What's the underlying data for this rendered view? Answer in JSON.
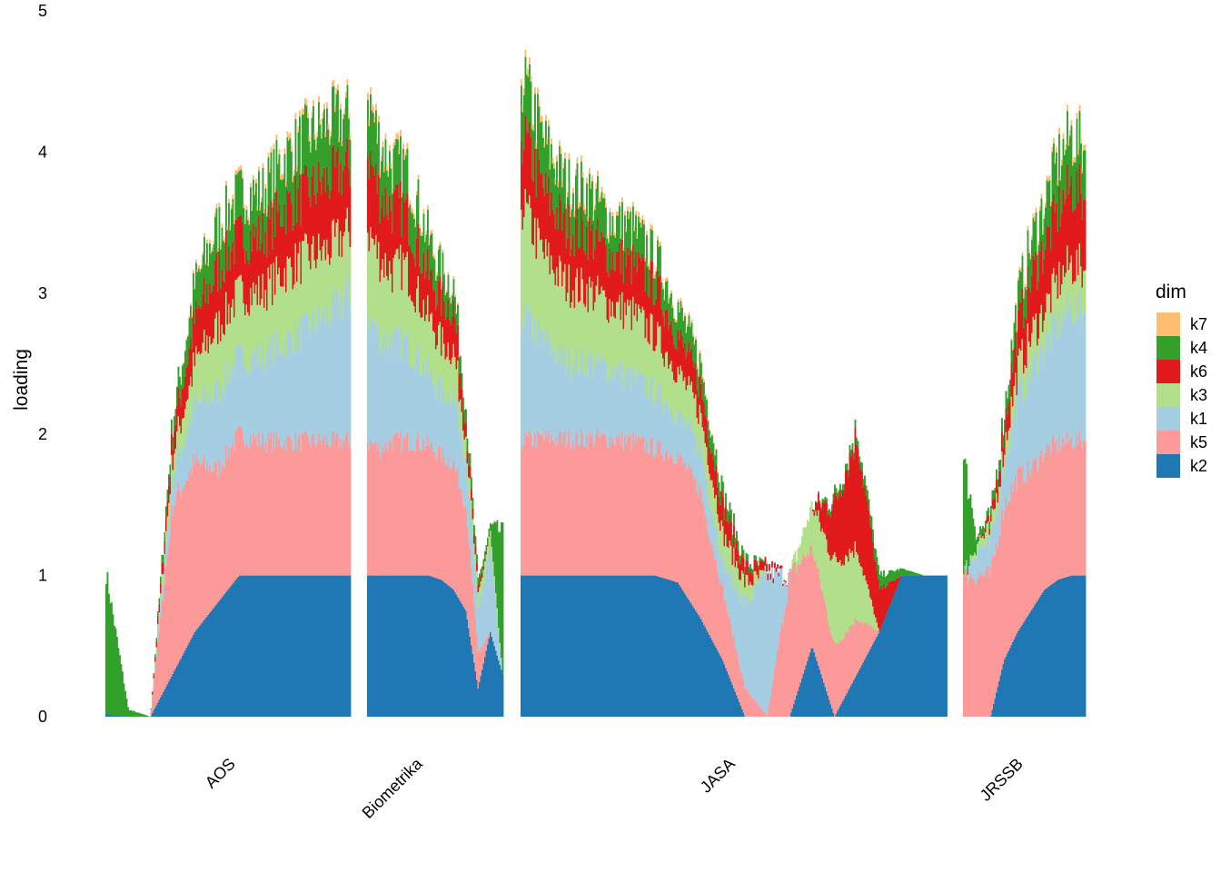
{
  "chart_data": {
    "type": "bar",
    "stacked": true,
    "xlabel": "",
    "ylabel": "loading",
    "ylim": [
      0,
      5
    ],
    "y_ticks": [
      "0",
      "1",
      "2",
      "3",
      "4",
      "5"
    ],
    "grid": false,
    "legend": {
      "title": "dim",
      "position": "right",
      "order": [
        "k7",
        "k4",
        "k6",
        "k3",
        "k1",
        "k5",
        "k2"
      ]
    },
    "colors": {
      "k2": "#1F78B4",
      "k5": "#FB9A99",
      "k1": "#A6CEE3",
      "k3": "#B2DF8A",
      "k6": "#E31A1C",
      "k4": "#33A02C",
      "k7": "#FDBF6F"
    },
    "stack_order": [
      "k2",
      "k5",
      "k1",
      "k3",
      "k6",
      "k4",
      "k7"
    ],
    "categories": [
      "AOS",
      "Biometrika",
      "JASA",
      "JRSSB"
    ],
    "approximate_series": [
      {
        "name": "k2",
        "profile": {
          "AOS": [
            0.02,
            0.0,
            0.0,
            0.3,
            0.6,
            0.8,
            1.0,
            1.0,
            1.0,
            1.0,
            1.0,
            1.0
          ],
          "Biometrika": [
            1.0,
            1.0,
            1.0,
            1.0,
            1.0,
            1.0,
            0.97,
            0.9,
            0.75,
            0.2,
            0.6,
            0.3
          ],
          "JASA": [
            1.0,
            1.0,
            1.0,
            1.0,
            1.0,
            1.0,
            1.0,
            0.95,
            0.7,
            0.4,
            0.0,
            0.0,
            0.0,
            0.5,
            0.0,
            0.3,
            0.6,
            1.0,
            1.0,
            1.0
          ],
          "JRSSB": [
            0.0,
            0.0,
            0.0,
            0.4,
            0.6,
            0.75,
            0.9,
            0.97,
            1.0,
            1.0
          ]
        }
      },
      {
        "name": "k5",
        "profile": {
          "AOS": [
            0.0,
            0.0,
            0.0,
            1.2,
            1.2,
            0.95,
            1.0,
            0.95,
            0.95,
            0.95,
            0.95,
            0.95
          ],
          "Biometrika": [
            0.95,
            0.9,
            0.95,
            0.95,
            0.95,
            0.92,
            0.88,
            0.9,
            0.75,
            0.25,
            0.0,
            0.0
          ],
          "JASA": [
            0.95,
            0.97,
            0.97,
            0.97,
            0.97,
            0.95,
            0.9,
            0.9,
            0.9,
            0.5,
            0.2,
            0.0,
            1.0,
            0.7,
            0.5,
            0.4,
            0.0,
            0.0,
            0.0,
            0.0
          ],
          "JRSSB": [
            1.0,
            1.0,
            1.0,
            1.1,
            1.1,
            1.0,
            0.98,
            0.96,
            0.96,
            0.96
          ]
        }
      },
      {
        "name": "k1",
        "profile": {
          "AOS": [
            0.0,
            0.0,
            0.0,
            0.2,
            0.4,
            0.55,
            0.55,
            0.6,
            0.7,
            0.8,
            0.9,
            1.05
          ],
          "Biometrika": [
            0.9,
            0.8,
            0.7,
            0.7,
            0.6,
            0.5,
            0.45,
            0.5,
            0.35,
            0.3,
            0.6,
            0.0
          ],
          "JASA": [
            0.9,
            0.7,
            0.55,
            0.55,
            0.5,
            0.45,
            0.4,
            0.3,
            0.3,
            0.2,
            0.6,
            1.0,
            0.0,
            0.0,
            0.0,
            0.0,
            0.0,
            0.0,
            0.0,
            0.0
          ],
          "JRSSB": [
            0.0,
            0.2,
            0.2,
            0.3,
            0.55,
            0.7,
            0.75,
            0.85,
            0.95,
            0.9
          ]
        }
      },
      {
        "name": "k3",
        "profile": {
          "AOS": [
            0.0,
            0.0,
            0.0,
            0.15,
            0.3,
            0.45,
            0.45,
            0.45,
            0.5,
            0.5,
            0.45,
            0.45
          ],
          "Biometrika": [
            0.6,
            0.55,
            0.5,
            0.55,
            0.45,
            0.4,
            0.35,
            0.3,
            0.15,
            0.1,
            0.1,
            0.0
          ],
          "JASA": [
            0.8,
            0.6,
            0.55,
            0.5,
            0.45,
            0.45,
            0.4,
            0.3,
            0.25,
            0.2,
            0.15,
            0.0,
            0.0,
            0.3,
            0.6,
            0.5,
            0.0,
            0.0,
            0.0,
            0.0
          ],
          "JRSSB": [
            0.0,
            0.05,
            0.1,
            0.1,
            0.2,
            0.25,
            0.25,
            0.3,
            0.3,
            0.3
          ]
        }
      },
      {
        "name": "k6",
        "profile": {
          "AOS": [
            0.0,
            0.0,
            0.0,
            0.15,
            0.3,
            0.4,
            0.4,
            0.4,
            0.45,
            0.45,
            0.5,
            0.45
          ],
          "Biometrika": [
            0.55,
            0.45,
            0.45,
            0.4,
            0.35,
            0.3,
            0.3,
            0.3,
            0.1,
            0.05,
            0.0,
            0.0
          ],
          "JASA": [
            0.5,
            0.45,
            0.4,
            0.4,
            0.35,
            0.35,
            0.35,
            0.25,
            0.2,
            0.2,
            0.1,
            0.05,
            0.0,
            0.0,
            0.4,
            0.8,
            0.3,
            0.0,
            0.0,
            0.0
          ],
          "JRSSB": [
            0.0,
            0.0,
            0.05,
            0.15,
            0.3,
            0.4,
            0.45,
            0.5,
            0.55,
            0.5
          ]
        }
      },
      {
        "name": "k4",
        "profile": {
          "AOS": [
            1.0,
            0.05,
            0.0,
            0.1,
            0.25,
            0.3,
            0.3,
            0.3,
            0.35,
            0.4,
            0.4,
            0.35
          ],
          "Biometrika": [
            0.4,
            0.35,
            0.3,
            0.3,
            0.3,
            0.25,
            0.2,
            0.15,
            0.1,
            0.05,
            0.05,
            1.0
          ],
          "JASA": [
            0.4,
            0.35,
            0.3,
            0.3,
            0.25,
            0.25,
            0.2,
            0.2,
            0.15,
            0.1,
            0.05,
            0.0,
            0.0,
            0.0,
            0.05,
            0.05,
            0.1,
            0.05,
            0.0,
            0.0
          ],
          "JRSSB": [
            0.8,
            0.05,
            0.05,
            0.1,
            0.2,
            0.25,
            0.3,
            0.35,
            0.35,
            0.35
          ]
        }
      },
      {
        "name": "k7",
        "profile": {
          "AOS": [
            0.0,
            0.0,
            0.0,
            0.0,
            0.02,
            0.03,
            0.03,
            0.03,
            0.04,
            0.04,
            0.04,
            0.04
          ],
          "Biometrika": [
            0.05,
            0.04,
            0.04,
            0.04,
            0.03,
            0.03,
            0.02,
            0.02,
            0.0,
            0.0,
            0.0,
            0.0
          ],
          "JASA": [
            0.05,
            0.04,
            0.04,
            0.04,
            0.03,
            0.03,
            0.03,
            0.02,
            0.02,
            0.0,
            0.0,
            0.0,
            0.0,
            0.0,
            0.0,
            0.0,
            0.0,
            0.0,
            0.0,
            0.0
          ],
          "JRSSB": [
            0.0,
            0.0,
            0.0,
            0.0,
            0.02,
            0.03,
            0.03,
            0.04,
            0.04,
            0.04
          ]
        }
      }
    ]
  }
}
